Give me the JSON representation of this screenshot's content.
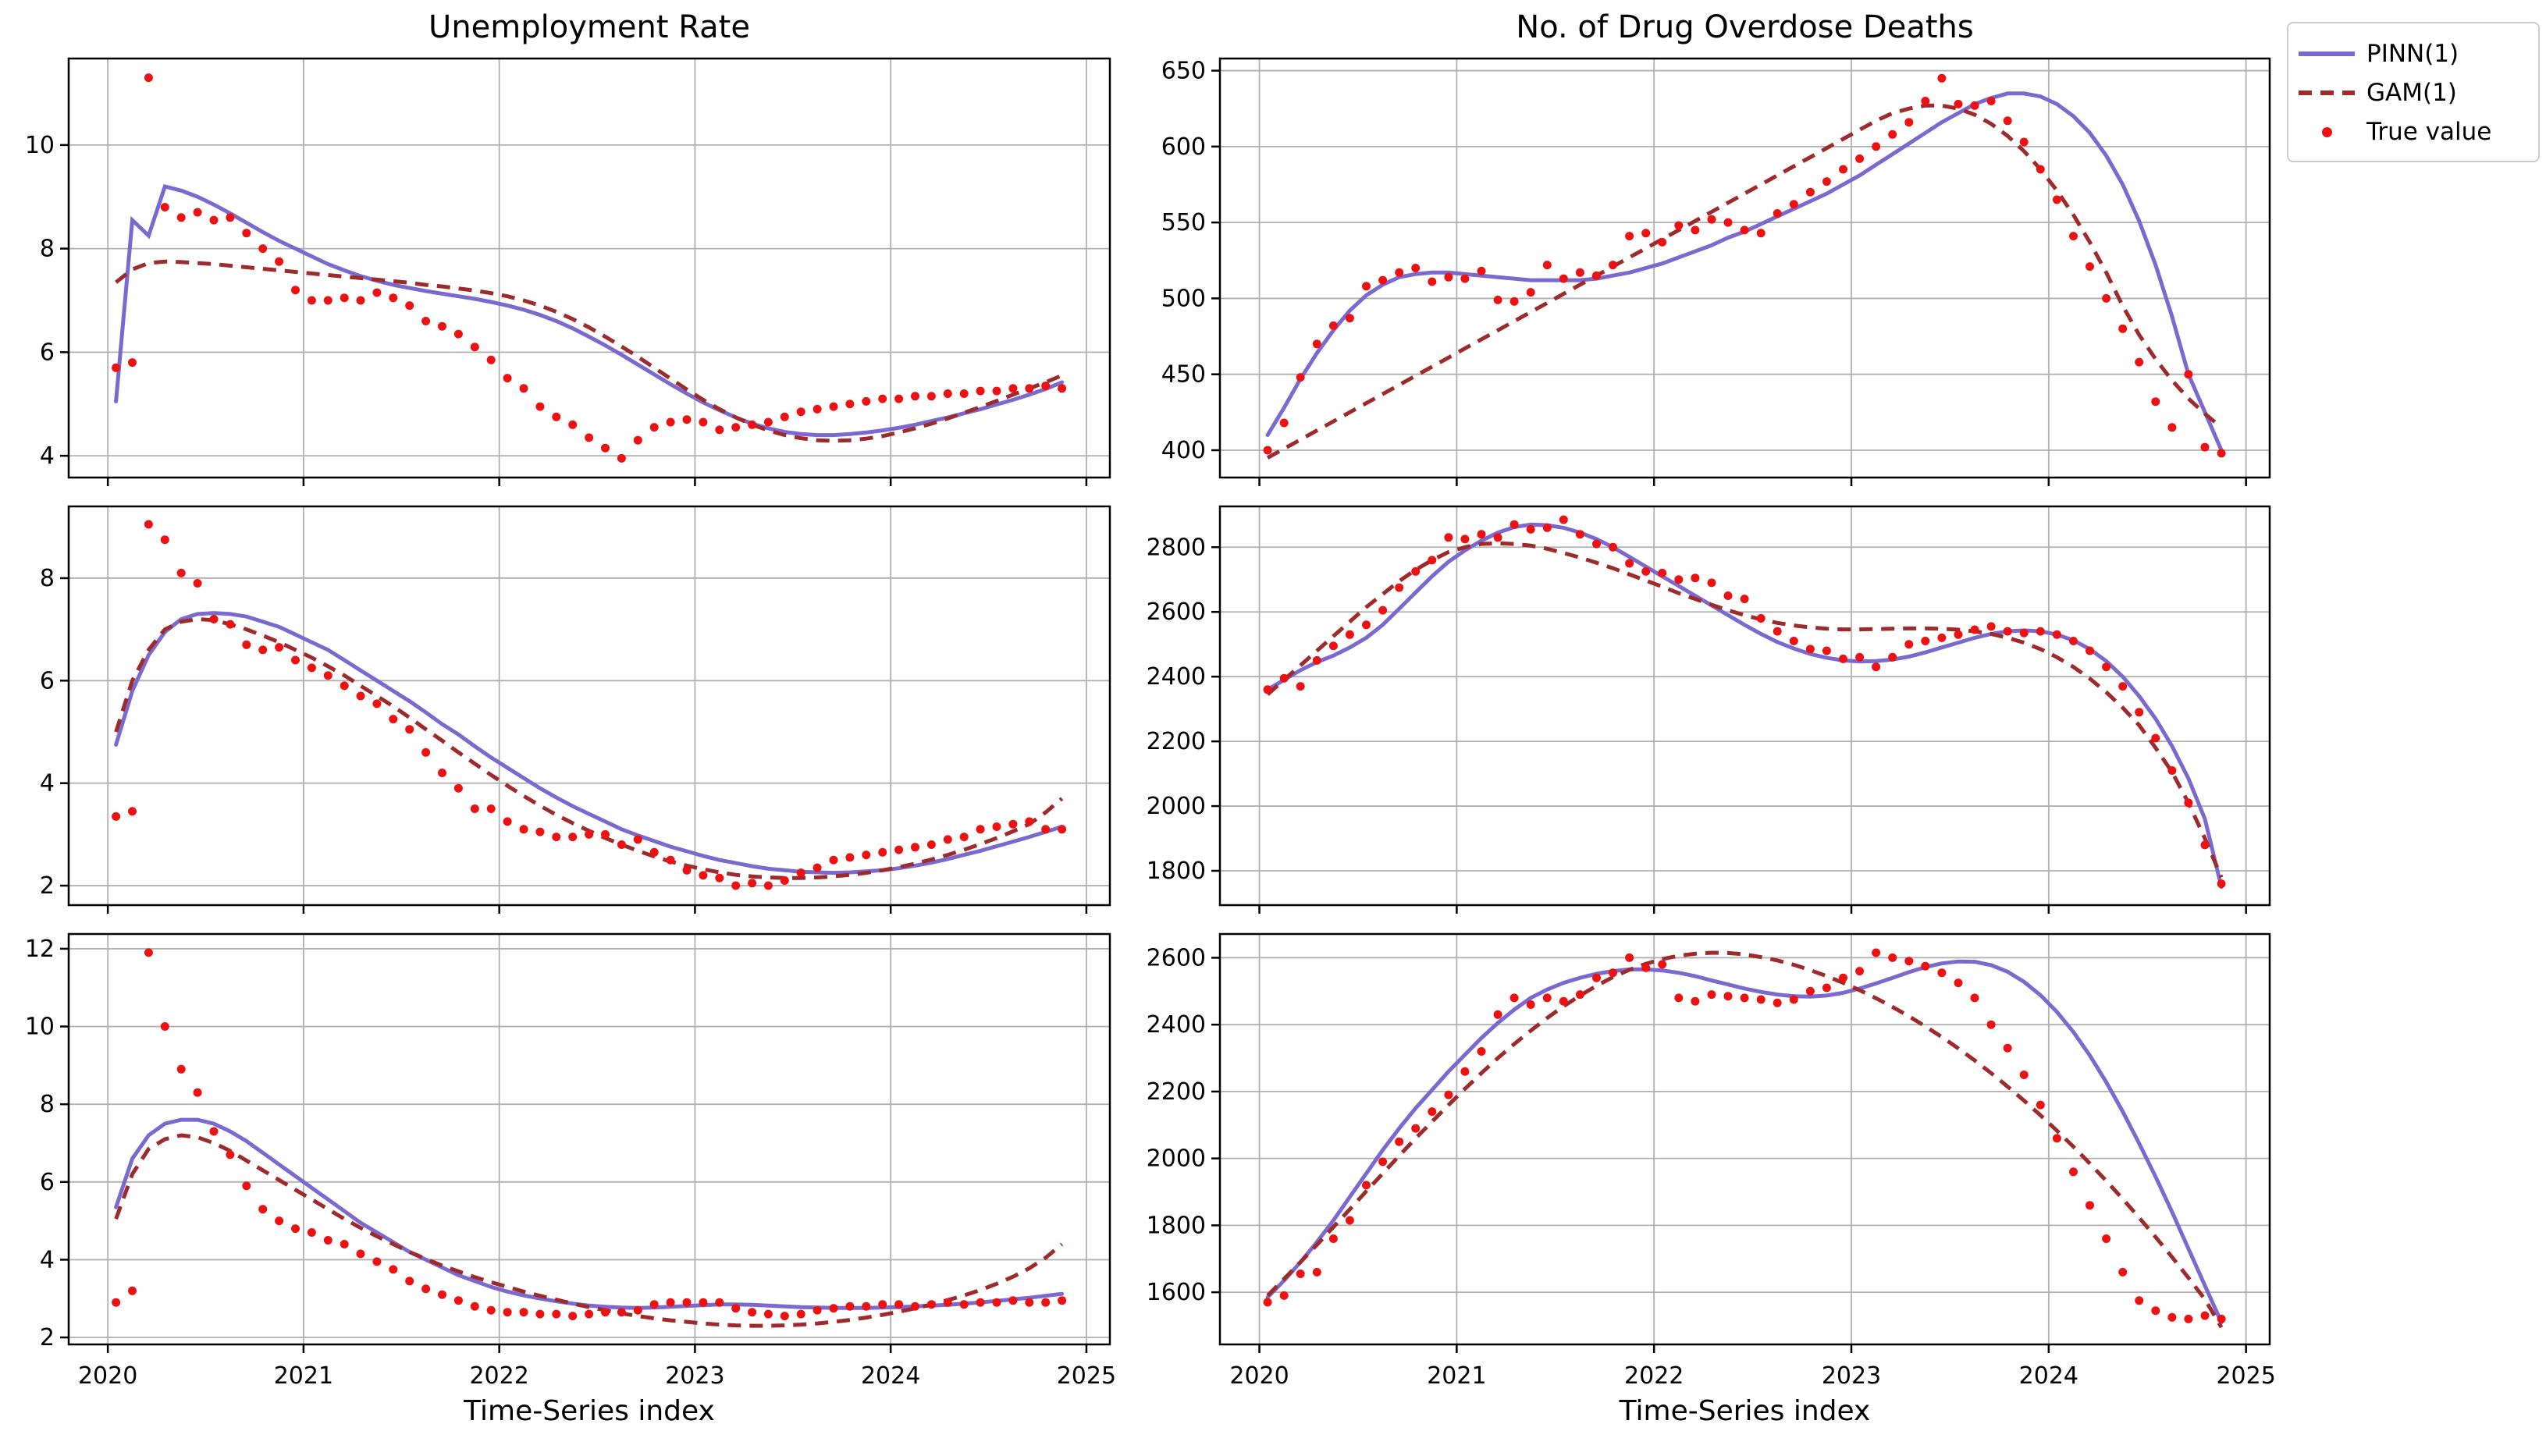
{
  "titles": {
    "left": "Unemployment Rate",
    "right": "No. of Drug Overdose Deaths"
  },
  "xlabel": "Time-Series index",
  "legend": {
    "items": [
      {
        "label": "PINN(1)",
        "type": "solid-line"
      },
      {
        "label": "GAM(1)",
        "type": "dashed-line"
      },
      {
        "label": "True value",
        "type": "dot"
      }
    ]
  },
  "colors": {
    "pinn": "#7b69d0",
    "gam": "#9e2a2b",
    "true_value": "#ee1111",
    "grid": "#b0b0b0",
    "spine": "#000000",
    "background": "#ffffff"
  },
  "chart_data": {
    "type": "line+scatter",
    "x": {
      "start": 2020.0417,
      "step": 0.0833333,
      "n": 59,
      "lim": [
        2019.8,
        2025.12
      ],
      "ticks": [
        2020,
        2021,
        2022,
        2023,
        2024,
        2025
      ]
    },
    "legend_entries": [
      "PINN(1)",
      "GAM(1)",
      "True value"
    ],
    "grid": true,
    "subplots": [
      {
        "id": "unemployment-series-1",
        "row": 0,
        "col": 0,
        "ylim": [
          3.58,
          11.67
        ],
        "yticks": [
          4,
          6,
          8,
          10
        ],
        "pinn": [
          5.05,
          8.55,
          8.25,
          9.2,
          9.12,
          9.0,
          8.85,
          8.68,
          8.5,
          8.32,
          8.15,
          8.0,
          7.85,
          7.7,
          7.58,
          7.47,
          7.38,
          7.3,
          7.24,
          7.18,
          7.13,
          7.08,
          7.03,
          6.97,
          6.9,
          6.82,
          6.72,
          6.6,
          6.46,
          6.3,
          6.13,
          5.95,
          5.76,
          5.57,
          5.38,
          5.2,
          5.03,
          4.88,
          4.74,
          4.62,
          4.53,
          4.46,
          4.42,
          4.4,
          4.4,
          4.42,
          4.45,
          4.49,
          4.54,
          4.6,
          4.67,
          4.74,
          4.82,
          4.9,
          4.99,
          5.08,
          5.18,
          5.29,
          5.42
        ],
        "gam": [
          7.35,
          7.6,
          7.72,
          7.75,
          7.74,
          7.72,
          7.7,
          7.67,
          7.64,
          7.61,
          7.58,
          7.55,
          7.52,
          7.49,
          7.46,
          7.43,
          7.4,
          7.37,
          7.34,
          7.3,
          7.27,
          7.23,
          7.19,
          7.14,
          7.08,
          7.0,
          6.9,
          6.78,
          6.64,
          6.48,
          6.3,
          6.11,
          5.91,
          5.7,
          5.49,
          5.28,
          5.08,
          4.9,
          4.74,
          4.6,
          4.49,
          4.4,
          4.34,
          4.3,
          4.29,
          4.3,
          4.33,
          4.38,
          4.45,
          4.53,
          4.62,
          4.72,
          4.83,
          4.94,
          5.06,
          5.18,
          5.3,
          5.42,
          5.55
        ],
        "true": [
          5.7,
          5.8,
          11.3,
          8.8,
          8.6,
          8.7,
          8.55,
          8.6,
          8.3,
          8.0,
          7.75,
          7.2,
          7.0,
          7.0,
          7.05,
          7.0,
          7.15,
          7.05,
          6.9,
          6.6,
          6.5,
          6.35,
          6.1,
          5.85,
          5.5,
          5.3,
          4.95,
          4.75,
          4.6,
          4.35,
          4.15,
          3.95,
          4.3,
          4.55,
          4.65,
          4.7,
          4.65,
          4.5,
          4.55,
          4.6,
          4.65,
          4.75,
          4.85,
          4.9,
          4.95,
          5.0,
          5.05,
          5.1,
          5.1,
          5.15,
          5.15,
          5.2,
          5.2,
          5.25,
          5.25,
          5.3,
          5.3,
          5.35,
          5.3
        ]
      },
      {
        "id": "overdose-series-1",
        "row": 0,
        "col": 1,
        "ylim": [
          382,
          658
        ],
        "yticks": [
          400,
          450,
          500,
          550,
          600,
          650
        ],
        "pinn": [
          410,
          428,
          447,
          464,
          479,
          492,
          502,
          509,
          514,
          516,
          517,
          517,
          516,
          515,
          514,
          513,
          512,
          512,
          512,
          512,
          513,
          515,
          517,
          520,
          523,
          527,
          531,
          535,
          540,
          544,
          549,
          554,
          559,
          564,
          569,
          575,
          581,
          588,
          595,
          602,
          609,
          616,
          622,
          628,
          632,
          635,
          635,
          633,
          628,
          620,
          609,
          594,
          575,
          551,
          522,
          488,
          450,
          425,
          400
        ],
        "gam": [
          395,
          401,
          407,
          413,
          419,
          425,
          431,
          437,
          443,
          449,
          455,
          461,
          467,
          473,
          479,
          485,
          491,
          497,
          503,
          509,
          515,
          521,
          527,
          533,
          539,
          545,
          551,
          557,
          563,
          569,
          575,
          581,
          587,
          593,
          599,
          605,
          611,
          617,
          622,
          625,
          627,
          627,
          625,
          621,
          615,
          607,
          597,
          585,
          571,
          555,
          537,
          517,
          495,
          476,
          460,
          446,
          434,
          424,
          415
        ],
        "true": [
          400,
          418,
          448,
          470,
          482,
          487,
          508,
          512,
          517,
          520,
          511,
          514,
          513,
          518,
          499,
          498,
          504,
          522,
          513,
          517,
          515,
          522,
          541,
          543,
          537,
          548,
          545,
          552,
          550,
          545,
          543,
          556,
          562,
          570,
          577,
          585,
          592,
          600,
          608,
          616,
          630,
          645,
          628,
          627,
          630,
          617,
          603,
          585,
          565,
          541,
          521,
          500,
          480,
          458,
          432,
          415,
          450,
          402,
          398
        ]
      },
      {
        "id": "unemployment-series-2",
        "row": 1,
        "col": 0,
        "ylim": [
          1.62,
          9.4
        ],
        "yticks": [
          2,
          4,
          6,
          8
        ],
        "pinn": [
          4.75,
          5.8,
          6.5,
          6.95,
          7.2,
          7.3,
          7.32,
          7.3,
          7.25,
          7.15,
          7.05,
          6.9,
          6.75,
          6.6,
          6.4,
          6.2,
          6.0,
          5.8,
          5.6,
          5.38,
          5.15,
          4.95,
          4.72,
          4.5,
          4.3,
          4.1,
          3.9,
          3.72,
          3.55,
          3.4,
          3.25,
          3.1,
          2.98,
          2.87,
          2.76,
          2.67,
          2.58,
          2.5,
          2.44,
          2.38,
          2.33,
          2.3,
          2.27,
          2.26,
          2.25,
          2.26,
          2.28,
          2.3,
          2.34,
          2.39,
          2.45,
          2.52,
          2.6,
          2.68,
          2.77,
          2.86,
          2.95,
          3.05,
          3.15
        ],
        "gam": [
          5.0,
          6.0,
          6.6,
          7.0,
          7.15,
          7.2,
          7.18,
          7.1,
          7.0,
          6.88,
          6.75,
          6.6,
          6.45,
          6.28,
          6.1,
          5.9,
          5.7,
          5.5,
          5.28,
          5.05,
          4.83,
          4.6,
          4.38,
          4.16,
          3.95,
          3.75,
          3.56,
          3.38,
          3.22,
          3.07,
          2.93,
          2.8,
          2.68,
          2.57,
          2.47,
          2.39,
          2.32,
          2.26,
          2.21,
          2.18,
          2.16,
          2.15,
          2.15,
          2.16,
          2.18,
          2.21,
          2.25,
          2.3,
          2.36,
          2.43,
          2.51,
          2.6,
          2.7,
          2.81,
          2.93,
          3.06,
          3.2,
          3.43,
          3.7
        ],
        "true": [
          3.35,
          3.45,
          9.05,
          8.75,
          8.1,
          7.9,
          7.2,
          7.1,
          6.7,
          6.6,
          6.65,
          6.4,
          6.25,
          6.1,
          5.9,
          5.7,
          5.55,
          5.25,
          5.05,
          4.6,
          4.2,
          3.9,
          3.5,
          3.5,
          3.25,
          3.1,
          3.05,
          2.95,
          2.95,
          3.0,
          3.0,
          2.8,
          2.9,
          2.65,
          2.5,
          2.3,
          2.2,
          2.15,
          2.0,
          2.05,
          2.0,
          2.1,
          2.25,
          2.35,
          2.5,
          2.55,
          2.6,
          2.65,
          2.7,
          2.75,
          2.8,
          2.9,
          2.95,
          3.1,
          3.15,
          3.2,
          3.25,
          3.1,
          3.1
        ]
      },
      {
        "id": "overdose-series-2",
        "row": 1,
        "col": 1,
        "ylim": [
          1694,
          2926
        ],
        "yticks": [
          1800,
          2000,
          2200,
          2400,
          2600,
          2800
        ],
        "pinn": [
          2360,
          2390,
          2420,
          2445,
          2465,
          2490,
          2520,
          2560,
          2610,
          2660,
          2710,
          2755,
          2790,
          2820,
          2845,
          2862,
          2870,
          2868,
          2860,
          2845,
          2825,
          2800,
          2770,
          2740,
          2710,
          2680,
          2650,
          2620,
          2590,
          2560,
          2532,
          2507,
          2487,
          2470,
          2458,
          2450,
          2447,
          2448,
          2453,
          2462,
          2475,
          2490,
          2505,
          2520,
          2532,
          2540,
          2543,
          2540,
          2530,
          2512,
          2485,
          2448,
          2400,
          2340,
          2270,
          2185,
          2085,
          1960,
          1750
        ],
        "gam": [
          2345,
          2390,
          2435,
          2480,
          2525,
          2570,
          2615,
          2655,
          2695,
          2730,
          2760,
          2785,
          2800,
          2810,
          2812,
          2810,
          2805,
          2795,
          2782,
          2768,
          2752,
          2735,
          2716,
          2697,
          2678,
          2658,
          2640,
          2622,
          2605,
          2590,
          2577,
          2566,
          2558,
          2552,
          2548,
          2546,
          2546,
          2547,
          2548,
          2549,
          2549,
          2548,
          2545,
          2540,
          2532,
          2520,
          2505,
          2485,
          2460,
          2430,
          2394,
          2352,
          2304,
          2250,
          2180,
          2105,
          2010,
          1900,
          1780
        ],
        "true": [
          2360,
          2395,
          2370,
          2450,
          2495,
          2530,
          2560,
          2605,
          2675,
          2725,
          2760,
          2830,
          2825,
          2840,
          2830,
          2870,
          2855,
          2860,
          2885,
          2840,
          2810,
          2800,
          2750,
          2725,
          2720,
          2700,
          2705,
          2690,
          2650,
          2640,
          2580,
          2540,
          2510,
          2485,
          2480,
          2455,
          2460,
          2430,
          2460,
          2500,
          2510,
          2520,
          2530,
          2545,
          2555,
          2540,
          2535,
          2540,
          2530,
          2510,
          2480,
          2430,
          2370,
          2290,
          2210,
          2110,
          2010,
          1880,
          1760
        ]
      },
      {
        "id": "unemployment-series-3",
        "row": 2,
        "col": 0,
        "ylim": [
          1.82,
          12.38
        ],
        "yticks": [
          2,
          4,
          6,
          8,
          10,
          12
        ],
        "pinn": [
          5.35,
          6.6,
          7.2,
          7.5,
          7.6,
          7.6,
          7.5,
          7.3,
          7.05,
          6.75,
          6.45,
          6.15,
          5.85,
          5.55,
          5.25,
          4.95,
          4.7,
          4.45,
          4.2,
          4.0,
          3.8,
          3.6,
          3.45,
          3.3,
          3.18,
          3.08,
          3.0,
          2.93,
          2.87,
          2.82,
          2.79,
          2.77,
          2.76,
          2.77,
          2.79,
          2.81,
          2.83,
          2.85,
          2.85,
          2.84,
          2.82,
          2.8,
          2.78,
          2.77,
          2.76,
          2.76,
          2.76,
          2.77,
          2.78,
          2.8,
          2.82,
          2.84,
          2.87,
          2.9,
          2.94,
          2.98,
          3.02,
          3.07,
          3.12
        ],
        "gam": [
          5.05,
          6.2,
          6.85,
          7.1,
          7.2,
          7.15,
          7.0,
          6.8,
          6.55,
          6.3,
          6.05,
          5.8,
          5.55,
          5.3,
          5.05,
          4.82,
          4.6,
          4.4,
          4.2,
          4.02,
          3.85,
          3.7,
          3.55,
          3.42,
          3.3,
          3.18,
          3.07,
          2.97,
          2.87,
          2.78,
          2.7,
          2.62,
          2.55,
          2.49,
          2.44,
          2.4,
          2.36,
          2.33,
          2.31,
          2.3,
          2.3,
          2.31,
          2.33,
          2.36,
          2.4,
          2.45,
          2.51,
          2.58,
          2.66,
          2.75,
          2.85,
          2.96,
          3.08,
          3.22,
          3.38,
          3.56,
          3.78,
          4.05,
          4.4
        ],
        "true": [
          2.9,
          3.2,
          11.9,
          10.0,
          8.9,
          8.3,
          7.3,
          6.7,
          5.9,
          5.3,
          5.0,
          4.8,
          4.7,
          4.5,
          4.4,
          4.15,
          3.95,
          3.75,
          3.45,
          3.25,
          3.1,
          2.95,
          2.8,
          2.7,
          2.65,
          2.65,
          2.6,
          2.6,
          2.55,
          2.6,
          2.65,
          2.65,
          2.7,
          2.85,
          2.9,
          2.9,
          2.9,
          2.9,
          2.75,
          2.65,
          2.6,
          2.55,
          2.6,
          2.7,
          2.75,
          2.8,
          2.8,
          2.85,
          2.85,
          2.8,
          2.85,
          2.9,
          2.85,
          2.9,
          2.9,
          2.95,
          2.9,
          2.9,
          2.95
        ]
      },
      {
        "id": "overdose-series-3",
        "row": 2,
        "col": 1,
        "ylim": [
          1444,
          2671
        ],
        "yticks": [
          1600,
          1800,
          2000,
          2200,
          2400,
          2600
        ],
        "pinn": [
          1585,
          1635,
          1690,
          1750,
          1815,
          1885,
          1955,
          2025,
          2090,
          2150,
          2205,
          2260,
          2310,
          2360,
          2405,
          2445,
          2480,
          2505,
          2525,
          2540,
          2552,
          2560,
          2565,
          2565,
          2562,
          2555,
          2545,
          2532,
          2520,
          2508,
          2498,
          2490,
          2485,
          2484,
          2487,
          2495,
          2508,
          2523,
          2540,
          2557,
          2572,
          2583,
          2589,
          2588,
          2578,
          2558,
          2528,
          2488,
          2438,
          2378,
          2308,
          2228,
          2140,
          2045,
          1945,
          1840,
          1730,
          1620,
          1510
        ],
        "gam": [
          1590,
          1640,
          1690,
          1742,
          1795,
          1848,
          1902,
          1955,
          2008,
          2060,
          2110,
          2160,
          2208,
          2255,
          2300,
          2342,
          2382,
          2420,
          2455,
          2487,
          2516,
          2542,
          2564,
          2582,
          2596,
          2606,
          2612,
          2615,
          2614,
          2610,
          2602,
          2592,
          2579,
          2563,
          2545,
          2525,
          2503,
          2479,
          2453,
          2425,
          2395,
          2363,
          2329,
          2293,
          2255,
          2215,
          2173,
          2129,
          2083,
          2035,
          1985,
          1933,
          1879,
          1823,
          1765,
          1705,
          1643,
          1579,
          1495
        ],
        "true": [
          1570,
          1590,
          1655,
          1660,
          1760,
          1815,
          1920,
          1990,
          2050,
          2090,
          2140,
          2190,
          2260,
          2320,
          2430,
          2480,
          2460,
          2480,
          2470,
          2490,
          2540,
          2555,
          2600,
          2570,
          2580,
          2480,
          2470,
          2490,
          2485,
          2480,
          2475,
          2465,
          2475,
          2500,
          2510,
          2540,
          2560,
          2615,
          2600,
          2590,
          2575,
          2555,
          2525,
          2480,
          2400,
          2330,
          2250,
          2160,
          2060,
          1960,
          1860,
          1760,
          1660,
          1575,
          1545,
          1525,
          1520,
          1530,
          1520
        ]
      }
    ]
  }
}
